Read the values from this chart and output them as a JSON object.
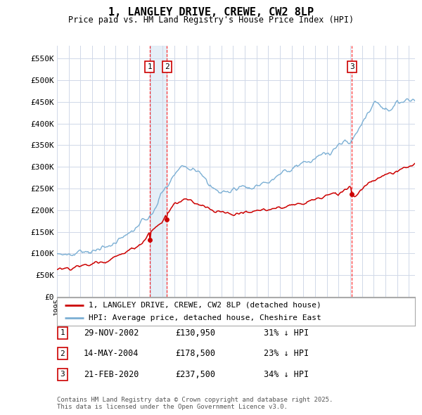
{
  "title": "1, LANGLEY DRIVE, CREWE, CW2 8LP",
  "subtitle": "Price paid vs. HM Land Registry's House Price Index (HPI)",
  "yticks": [
    0,
    50000,
    100000,
    150000,
    200000,
    250000,
    300000,
    350000,
    400000,
    450000,
    500000,
    550000
  ],
  "ytick_labels": [
    "£0",
    "£50K",
    "£100K",
    "£150K",
    "£200K",
    "£250K",
    "£300K",
    "£350K",
    "£400K",
    "£450K",
    "£500K",
    "£550K"
  ],
  "xlim_start": 1995.0,
  "xlim_end": 2025.5,
  "ylim_min": 0,
  "ylim_max": 580000,
  "sale_color": "#cc0000",
  "hpi_color": "#7bafd4",
  "hpi_fill_color": "#dce9f5",
  "sale_label": "1, LANGLEY DRIVE, CREWE, CW2 8LP (detached house)",
  "hpi_label": "HPI: Average price, detached house, Cheshire East",
  "transactions": [
    {
      "num": 1,
      "date": "29-NOV-2002",
      "price": 130950,
      "pct": "31%",
      "x": 2002.91,
      "price_val": 130950
    },
    {
      "num": 2,
      "date": "14-MAY-2004",
      "price": 178500,
      "pct": "23%",
      "x": 2004.37,
      "price_val": 178500
    },
    {
      "num": 3,
      "date": "21-FEB-2020",
      "price": 237500,
      "pct": "34%",
      "x": 2020.13,
      "price_val": 237500
    }
  ],
  "footnote": "Contains HM Land Registry data © Crown copyright and database right 2025.\nThis data is licensed under the Open Government Licence v3.0.",
  "background_color": "#ffffff",
  "grid_color": "#d0d8e8"
}
